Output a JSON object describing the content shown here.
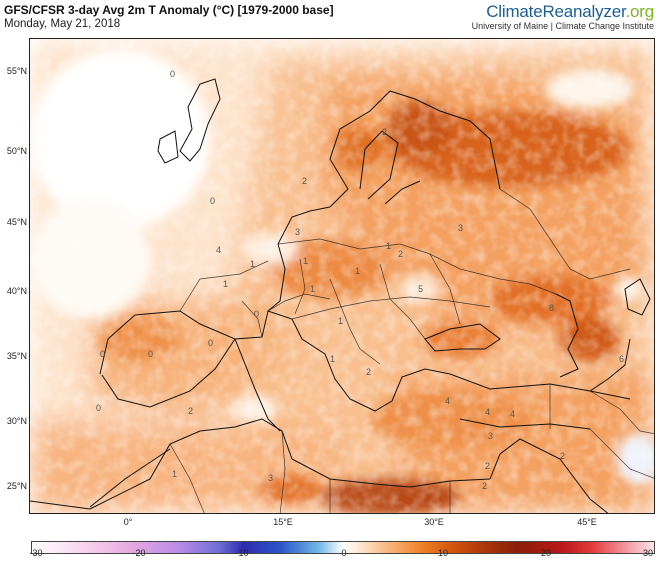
{
  "header": {
    "title": "GFS/CFSR 3-day Avg 2m T Anomaly (°C) [1979-2000 base]",
    "subtitle": "Monday, May 21, 2018"
  },
  "brand": {
    "name_main": "ClimateReanalyzer",
    "name_suffix": ".org",
    "affiliation": "University of Maine | Climate Change Institute",
    "main_color": "#1c5e93",
    "suffix_color": "#7fb32a"
  },
  "map": {
    "lat_labels": [
      "55°N",
      "50°N",
      "45°N",
      "40°N",
      "35°N",
      "30°N",
      "25°N"
    ],
    "lon_labels": [
      "0°",
      "15°E",
      "30°E",
      "45°E"
    ],
    "contour_labels": [
      "0",
      "0",
      "0",
      "2",
      "2",
      "3",
      "3",
      "1",
      "1",
      "1",
      "1",
      "1",
      "4",
      "2",
      "1",
      "5",
      "0",
      "1",
      "0",
      "8",
      "6",
      "0",
      "0",
      "4",
      "3",
      "2",
      "2",
      "1",
      "2",
      "3",
      "2",
      "1",
      "2",
      "4",
      "4"
    ],
    "colors": {
      "ocean_cool": "#ffffff",
      "warm_light": "#fbcfa5",
      "warm_mid": "#f3a060",
      "warm_strong": "#e07024",
      "warm_hot": "#b84a12"
    }
  },
  "colorbar": {
    "ticks": [
      "-30",
      "-20",
      "-10",
      "0",
      "10",
      "20",
      "30"
    ],
    "range": [
      -30,
      30
    ]
  }
}
